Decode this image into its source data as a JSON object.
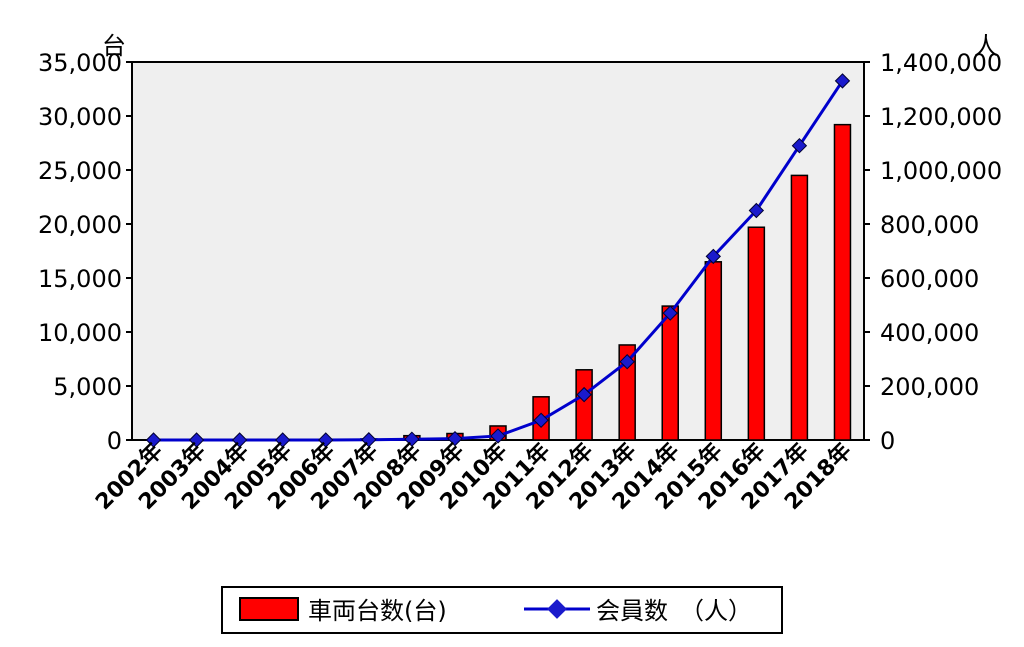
{
  "chart_data": {
    "type": "bar",
    "categories": [
      "2002年",
      "2003年",
      "2004年",
      "2005年",
      "2006年",
      "2007年",
      "2008年",
      "2009年",
      "2010年",
      "2011年",
      "2012年",
      "2013年",
      "2014年",
      "2015年",
      "2016年",
      "2017年",
      "2018年"
    ],
    "series": [
      {
        "name": "車両台数(台)",
        "type": "bar",
        "axis": "left",
        "color": "#ff0000",
        "values": [
          0,
          0,
          0,
          0,
          0,
          100,
          400,
          600,
          1300,
          4000,
          6500,
          8800,
          12400,
          16500,
          19700,
          24500,
          29200
        ]
      },
      {
        "name": "会員数　（人）",
        "type": "line",
        "axis": "right",
        "color": "#0000cc",
        "values": [
          0,
          0,
          0,
          0,
          0,
          1000,
          3000,
          5000,
          15000,
          73000,
          168000,
          290000,
          470000,
          680000,
          850000,
          1090000,
          1330000
        ]
      }
    ],
    "left_axis": {
      "unit": "台",
      "min": 0,
      "max": 35000,
      "ticks": [
        "0",
        "5,000",
        "10,000",
        "15,000",
        "20,000",
        "25,000",
        "30,000",
        "35,000"
      ]
    },
    "right_axis": {
      "unit": "人",
      "min": 0,
      "max": 1400000,
      "ticks": [
        "0",
        "200,000",
        "400,000",
        "600,000",
        "800,000",
        "1,000,000",
        "1,200,000",
        "1,400,000"
      ]
    },
    "grid": false,
    "legend_position": "bottom",
    "colors": {
      "plot_background": "#efefef",
      "bar": "#ff0000",
      "line": "#0000cc",
      "marker": "#1a1acc"
    }
  }
}
